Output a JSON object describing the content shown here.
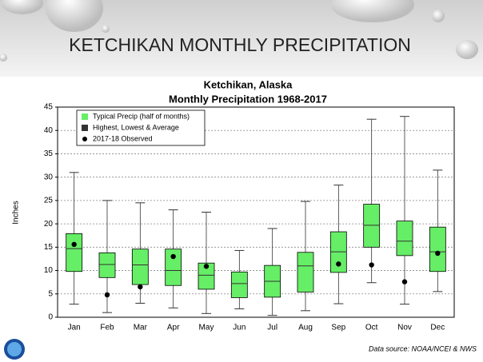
{
  "slide": {
    "title": "KETCHIKAN MONTHLY PRECIPITATION"
  },
  "chart_data": {
    "type": "box",
    "title": "Ketchikan, Alaska",
    "subtitle": "Monthly Precipitation 1968-2017",
    "y_label": "Inches",
    "source": "Data source: NOAA/NCEI & NWS",
    "categories": [
      "Jan",
      "Feb",
      "Mar",
      "Apr",
      "May",
      "Jun",
      "Jul",
      "Aug",
      "Sep",
      "Oct",
      "Nov",
      "Dec"
    ],
    "series": [
      {
        "name": "Typical Precip (half of months)",
        "color": "#66ee66",
        "q1": [
          9.8,
          8.5,
          7,
          6.8,
          6,
          4.2,
          4.3,
          5.4,
          9.6,
          15,
          13.2,
          9.8
        ],
        "q3": [
          17.9,
          13.8,
          14.6,
          14.6,
          11.6,
          9.7,
          11.1,
          13.9,
          18.3,
          24.2,
          20.6,
          19.3
        ]
      },
      {
        "name": "Highest, Lowest & Average",
        "color": "#333333",
        "low": [
          2.8,
          1,
          3,
          2,
          0.8,
          1.8,
          0.4,
          1.4,
          2.9,
          7.4,
          2.8,
          5.5
        ],
        "high": [
          31,
          25,
          24.5,
          23,
          22.5,
          14.3,
          19,
          24.8,
          28.3,
          42.4,
          43,
          31.5
        ],
        "average": [
          14.7,
          11.3,
          11.2,
          10,
          9,
          7.2,
          7.7,
          11,
          14,
          19.7,
          16.3,
          14
        ]
      },
      {
        "name": "2017-18 Observed",
        "color": "#000000",
        "values": [
          15.6,
          4.8,
          6.5,
          13,
          10.9,
          null,
          null,
          null,
          11.4,
          11.2,
          7.6,
          13.7
        ]
      }
    ],
    "ylim": [
      0,
      45
    ],
    "yticks": [
      0,
      5,
      10,
      15,
      20,
      25,
      30,
      35,
      40,
      45
    ],
    "grid": true,
    "legend": "top-left"
  }
}
